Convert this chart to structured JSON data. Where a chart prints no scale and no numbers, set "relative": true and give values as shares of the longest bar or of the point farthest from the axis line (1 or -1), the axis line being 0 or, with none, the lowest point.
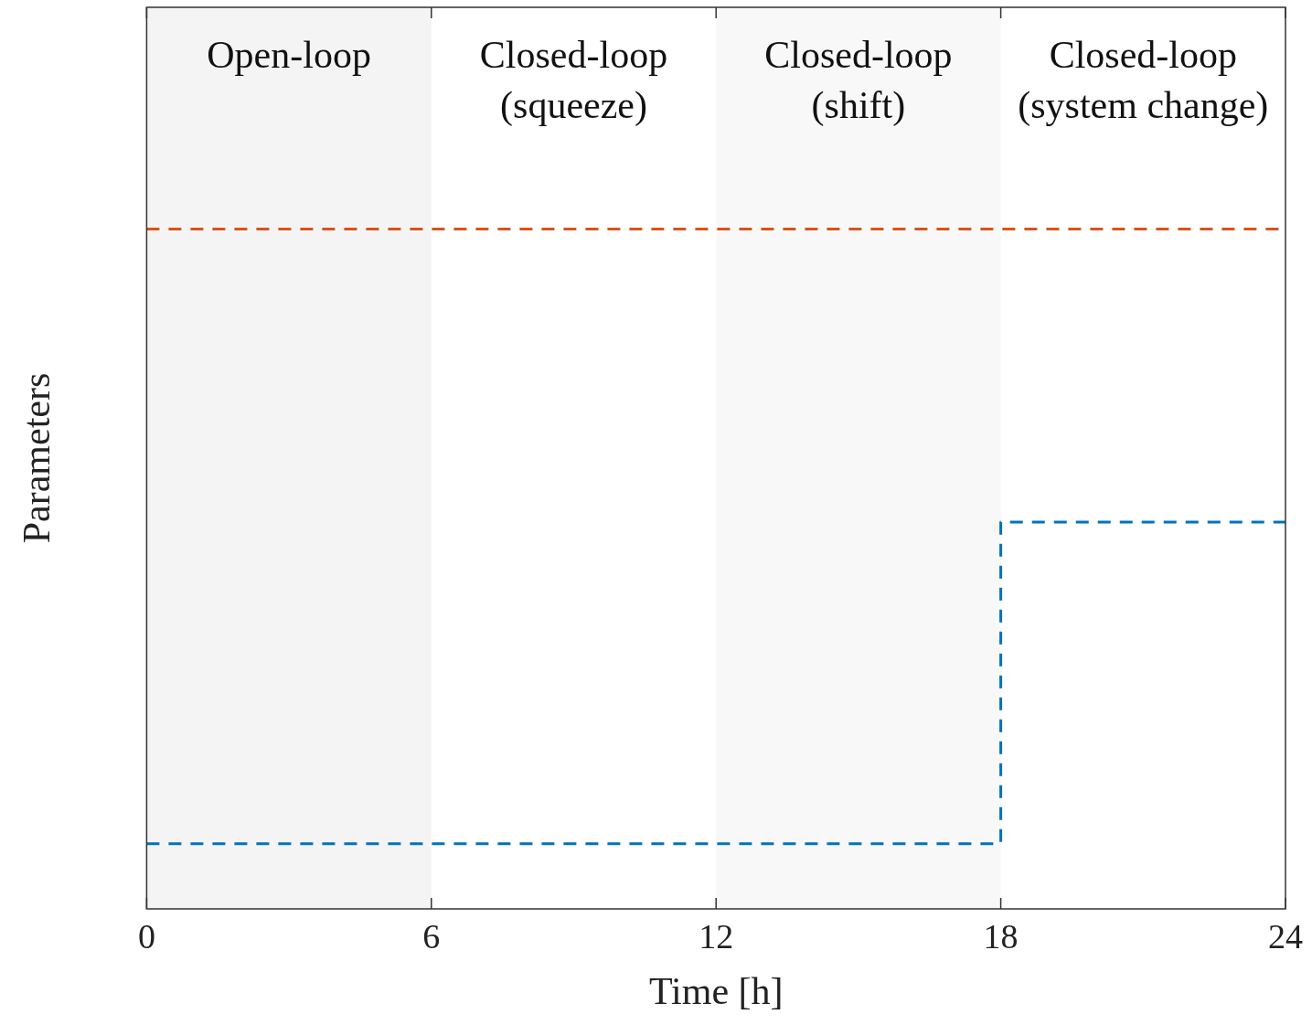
{
  "chart_data": {
    "type": "step",
    "relative": true,
    "xlabel": "Time [h]",
    "ylabel": "Parameters",
    "xlim": [
      0,
      24
    ],
    "xticks": [
      0,
      6,
      12,
      18,
      24
    ],
    "grid": false,
    "legend": false,
    "line_style": "dashed",
    "marker": "none",
    "series": [
      {
        "color": "#d95319",
        "x": [
          0,
          24
        ],
        "values": [
          1,
          1
        ]
      },
      {
        "color": "#0072bd",
        "x": [
          0,
          18,
          24
        ],
        "values": [
          0.096,
          0.569,
          0.569
        ]
      }
    ],
    "bands": [
      {
        "axis": "x",
        "from": 0,
        "to": 6,
        "label": "Open-loop",
        "color": "#f4f4f4"
      },
      {
        "axis": "x",
        "from": 12,
        "to": 18,
        "label": "Closed-loop (shift)",
        "color": "#f8f8f8"
      }
    ],
    "annotations": [
      "Closed-loop (squeeze)",
      "Closed-loop (system change)"
    ]
  }
}
